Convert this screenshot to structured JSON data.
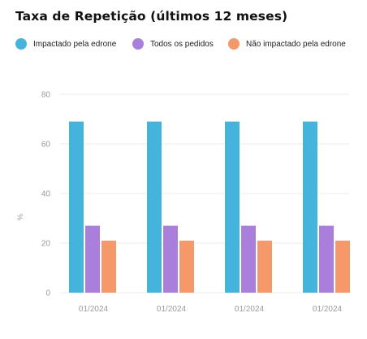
{
  "title": "Taxa de Repetição (últimos 12 meses)",
  "legend": [
    {
      "label": "Impactado pela edrone",
      "color": "#45b4dc"
    },
    {
      "label": "Todos os pedidos",
      "color": "#a97fdb"
    },
    {
      "label": "Não impactado pela edrone",
      "color": "#f5986a"
    }
  ],
  "chart_data": {
    "type": "bar",
    "title": "Taxa de Repetição (últimos 12 meses)",
    "xlabel": "",
    "ylabel": "%",
    "ylim": [
      0,
      80
    ],
    "yticks": [
      0,
      20,
      40,
      60,
      80
    ],
    "grid": true,
    "legend_position": "top",
    "categories": [
      "01/2024",
      "01/2024",
      "01/2024",
      "01/2024"
    ],
    "series": [
      {
        "name": "Impactado pela edrone",
        "color": "#45b4dc",
        "values": [
          69,
          69,
          69,
          69
        ]
      },
      {
        "name": "Todos os pedidos",
        "color": "#a97fdb",
        "values": [
          27,
          27,
          27,
          27
        ]
      },
      {
        "name": "Não impactado pela edrone",
        "color": "#f5986a",
        "values": [
          21,
          21,
          21,
          21
        ]
      }
    ]
  }
}
